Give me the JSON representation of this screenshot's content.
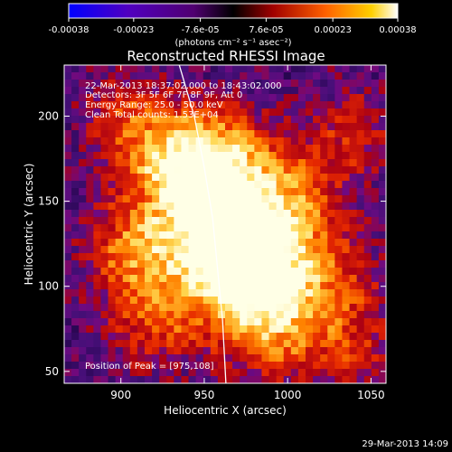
{
  "colorbar": {
    "ticks": [
      "-0.00038",
      "-0.00023",
      "-7.6e-05",
      "7.6e-05",
      "0.00023",
      "0.00038"
    ],
    "tick_values": [
      -0.00038,
      -0.00023,
      -7.6e-05,
      7.6e-05,
      0.00023,
      0.00038
    ],
    "range": [
      -0.00038,
      0.00038
    ],
    "unit_label": "(photons cm⁻² s⁻¹ asec⁻²)"
  },
  "annotation": {
    "time_range": "22-Mar-2013 18:37:02.000 to 18:43:02.000",
    "detectors": "Detectors: 3F 5F 6F 7F 8F 9F, Att 0",
    "energy": "Energy Range: 25.0 - 50.0 keV",
    "clean": "Clean    Total counts: 1.53E+04",
    "peak": "Position of Peak = [975,108]"
  },
  "footer": {
    "date": "29-Mar-2013 14:09"
  },
  "chart_data": {
    "type": "heatmap",
    "title": "Reconstructed RHESSI Image",
    "xlabel": "Heliocentric X (arcsec)",
    "ylabel": "Heliocentric Y (arcsec)",
    "xlim": [
      866,
      1059
    ],
    "ylim": [
      43,
      230
    ],
    "xticks": [
      900,
      950,
      1000,
      1050
    ],
    "yticks": [
      50,
      100,
      150,
      200
    ],
    "peak": [
      975,
      108
    ],
    "limb_curve": [
      [
        935,
        230
      ],
      [
        944,
        200
      ],
      [
        950,
        170
      ],
      [
        955,
        140
      ],
      [
        958,
        110
      ],
      [
        961,
        80
      ],
      [
        963,
        43
      ]
    ],
    "colors": {
      "dark": "#1a0040",
      "purple": "#5a12a0",
      "red": "#c40000",
      "orange": "#ff7a00",
      "white": "#ffffff"
    }
  }
}
